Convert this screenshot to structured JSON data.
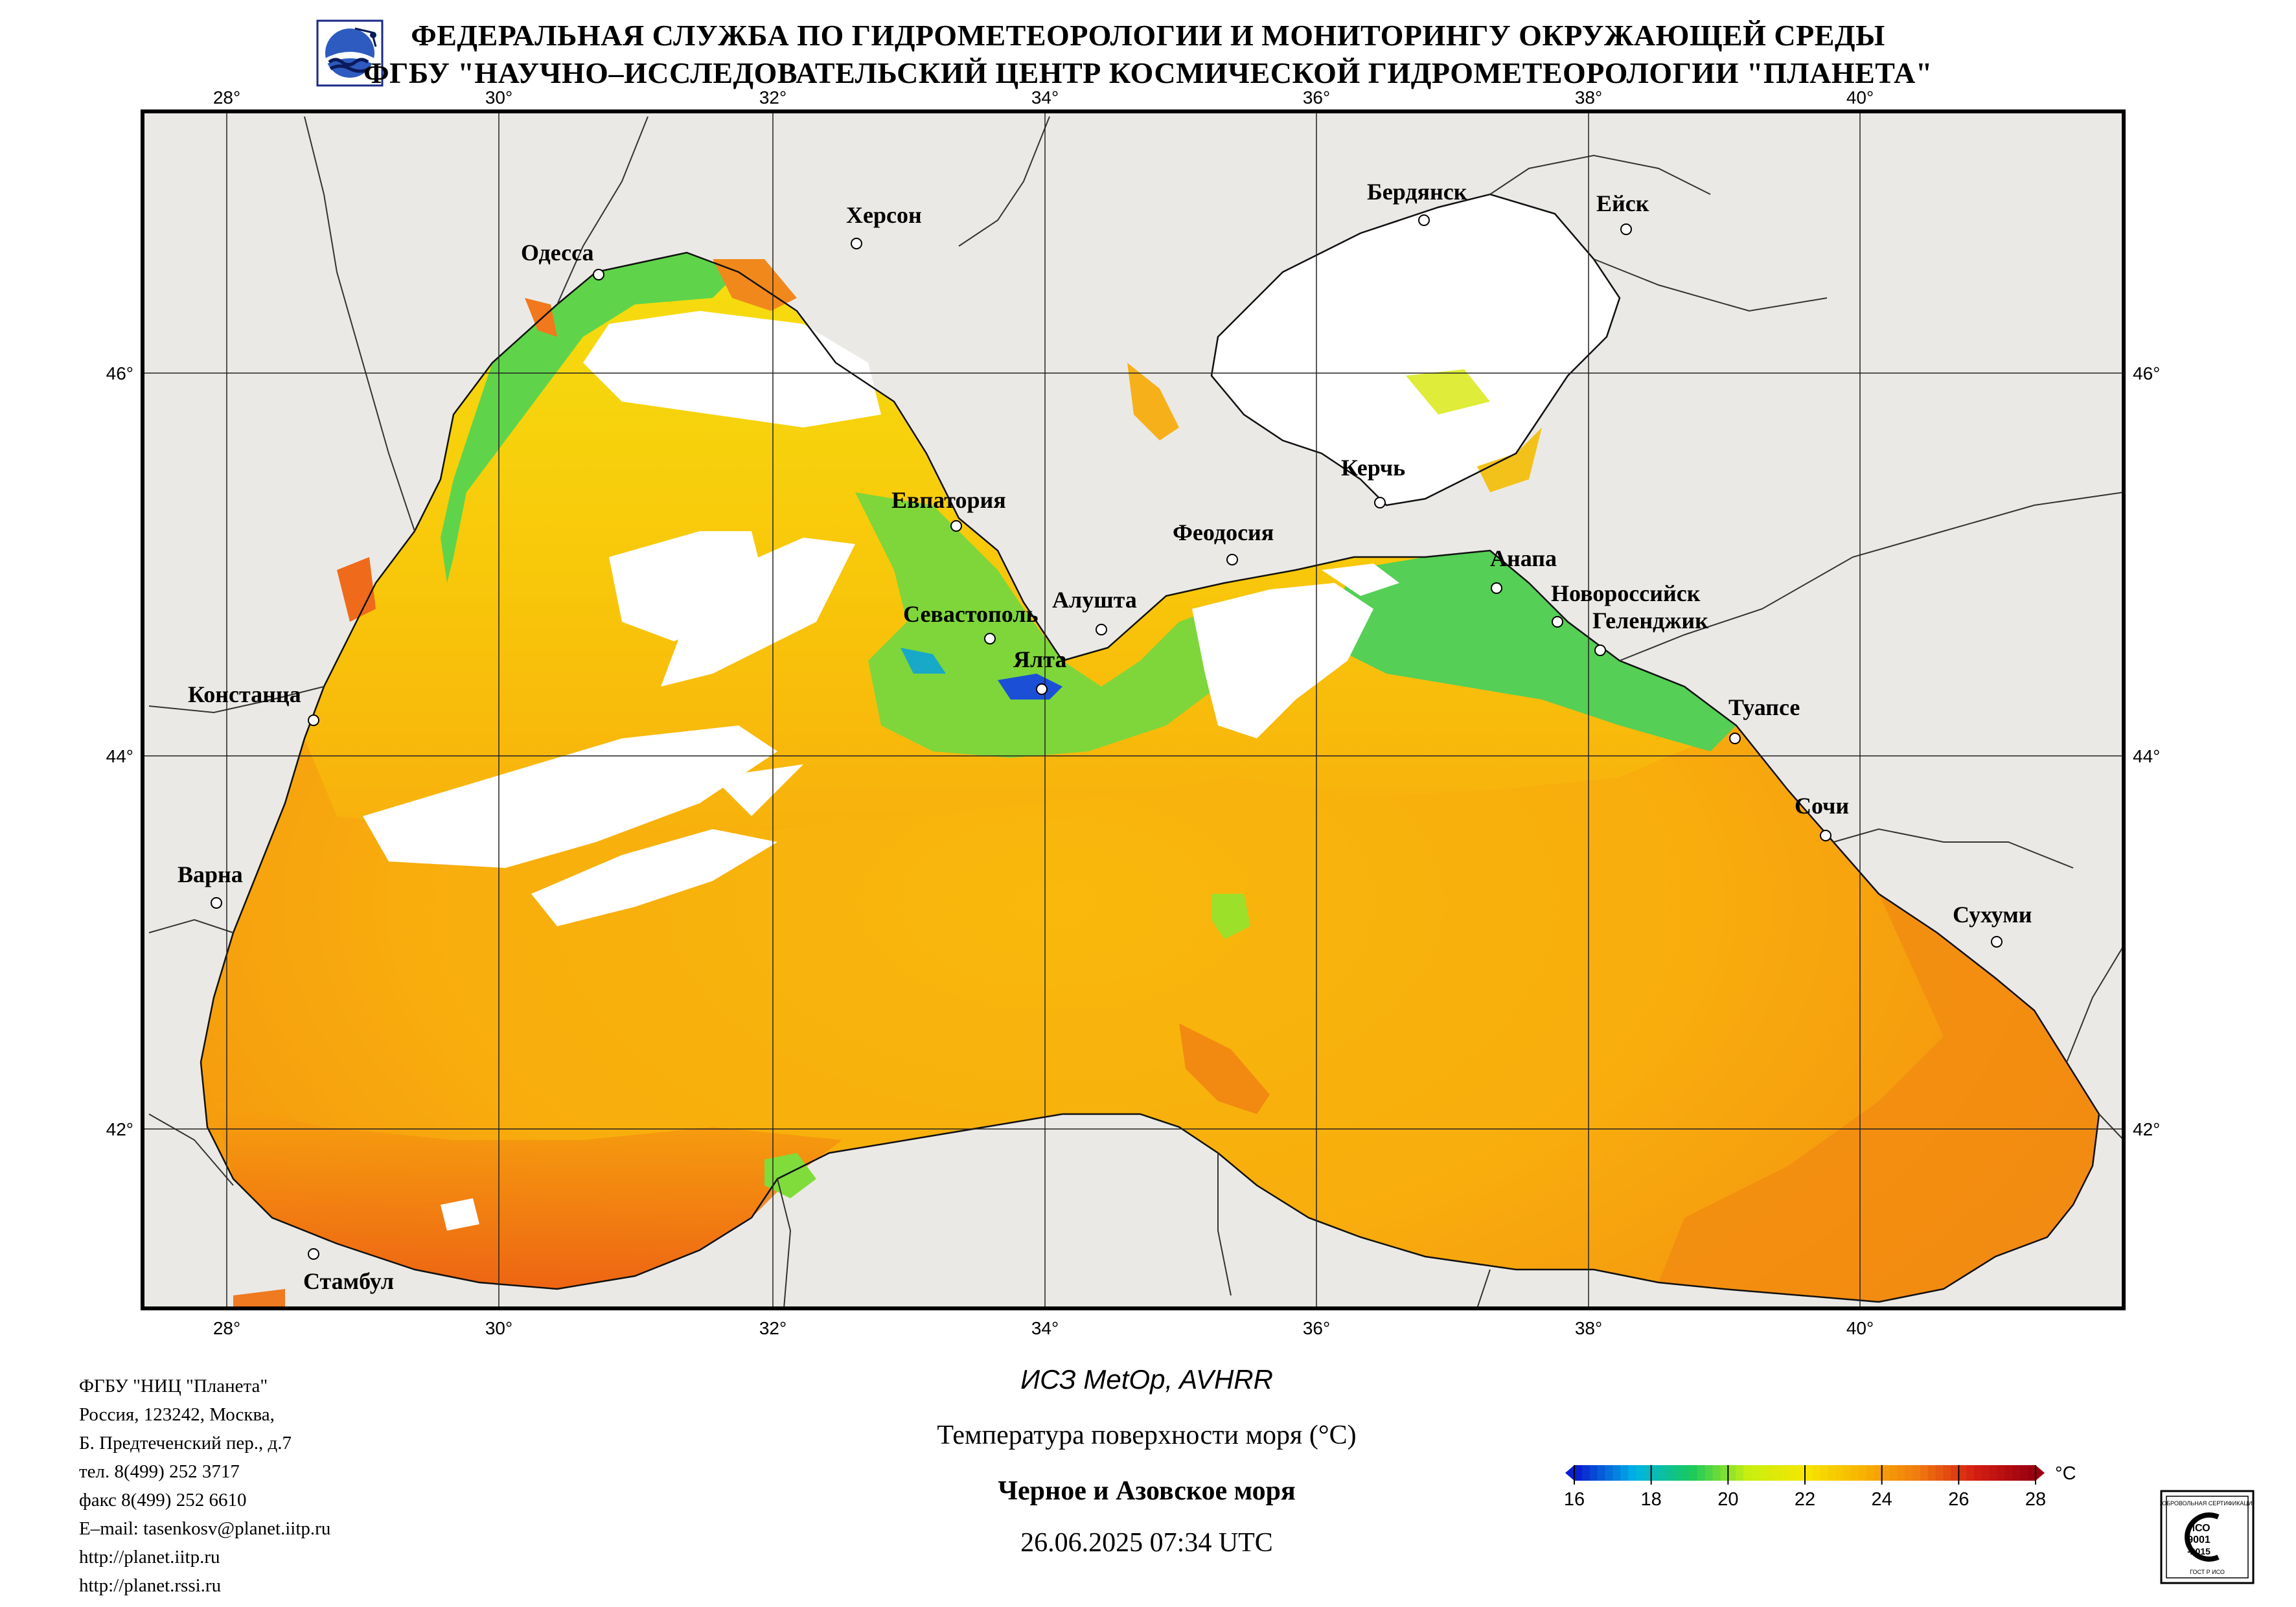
{
  "header": {
    "line1": "ФЕДЕРАЛЬНАЯ СЛУЖБА ПО ГИДРОМЕТЕОРОЛОГИИ И МОНИТОРИНГУ ОКРУЖАЮЩЕЙ СРЕДЫ",
    "line2": "ФГБУ \"НАУЧНО–ИССЛЕДОВАТЕЛЬСКИЙ ЦЕНТР КОСМИЧЕСКОЙ ГИДРОМЕТЕОРОЛОГИИ \"ПЛАНЕТА\""
  },
  "map": {
    "lon_labels": [
      "28°",
      "30°",
      "32°",
      "34°",
      "36°",
      "38°",
      "40°"
    ],
    "lat_labels": [
      "46°",
      "44°",
      "42°"
    ],
    "cities": [
      {
        "name": "Одесса"
      },
      {
        "name": "Херсон"
      },
      {
        "name": "Бердянск"
      },
      {
        "name": "Ейск"
      },
      {
        "name": "Евпатория"
      },
      {
        "name": "Керчь"
      },
      {
        "name": "Феодосия"
      },
      {
        "name": "Анапа"
      },
      {
        "name": "Новороссийск"
      },
      {
        "name": "Геленджик"
      },
      {
        "name": "Севастополь"
      },
      {
        "name": "Алушта"
      },
      {
        "name": "Ялта"
      },
      {
        "name": "Констанца"
      },
      {
        "name": "Туапсе"
      },
      {
        "name": "Сочи"
      },
      {
        "name": "Варна"
      },
      {
        "name": "Сухуми"
      },
      {
        "name": "Стамбул"
      }
    ],
    "colors": {
      "land": "#ebe9e6",
      "cloud": "#ffffff",
      "grid": "#222222",
      "border": "#000000"
    }
  },
  "footer": {
    "org_lines": [
      "ФГБУ \"НИЦ \"Планета\"",
      "Россия, 123242, Москва,",
      "Б. Предтеченский пер., д.7",
      "тел. 8(499) 252 3717",
      "факс 8(499) 252 6610",
      "E–mail: tasenkosv@planet.iitp.ru",
      "http://planet.iitp.ru",
      "http://planet.rssi.ru"
    ],
    "satellite": "ИСЗ MetOp, AVHRR",
    "product": "Температура поверхности моря (°C)",
    "region": "Черное и Азовское моря",
    "datetime": "26.06.2025 07:34 UTC"
  },
  "colorbar": {
    "unit": "°C",
    "ticks": [
      "16",
      "18",
      "20",
      "22",
      "24",
      "26",
      "28"
    ],
    "min": 16,
    "max": 28,
    "stops": [
      "#0a1fcf",
      "#00b3e6",
      "#19c95c",
      "#c8ef10",
      "#f5e600",
      "#f8b400",
      "#f17a10",
      "#d51e12",
      "#9a0010"
    ]
  },
  "iso_badge": {
    "top": "ДОБРОВОЛЬНАЯ СЕРТИФИКАЦИЯ",
    "line1": "ИСО",
    "line2": "9001",
    "line3": "-2015",
    "bottom": "ГОСТ Р ИСО"
  }
}
